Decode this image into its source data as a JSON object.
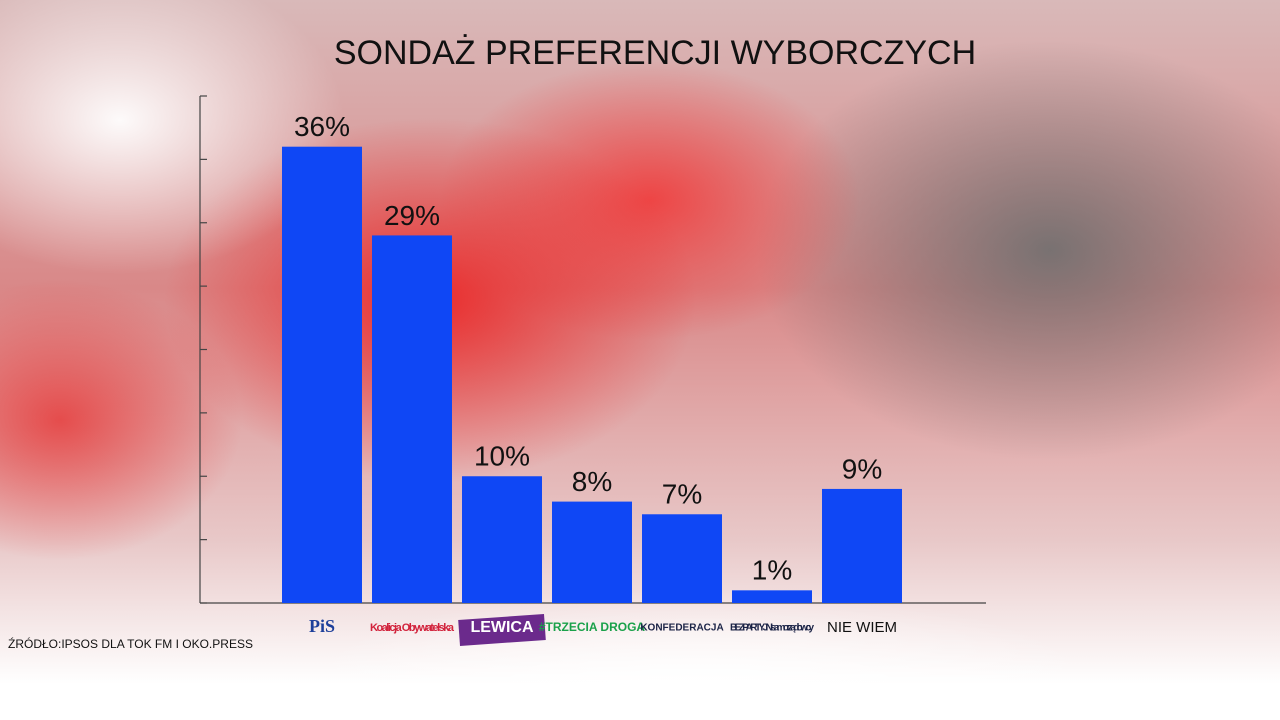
{
  "chart_data": {
    "type": "bar",
    "title": "SONDAŻ PREFERENCJI WYBORCZYCH",
    "categories": [
      "PiS",
      "Koalicja Obywatelska",
      "LEWICA",
      "#TRZECIA DROGA",
      "KONFEDERACJA",
      "BEZPARTYJNI samorządowcy",
      "NIE WIEM"
    ],
    "values": [
      36,
      29,
      10,
      8,
      7,
      1,
      9
    ],
    "value_labels": [
      "36%",
      "29%",
      "10%",
      "8%",
      "7%",
      "1%",
      "9%"
    ],
    "color": "#0f47f5",
    "ylim": [
      0,
      40
    ],
    "yticks": [
      0,
      5,
      10,
      15,
      20,
      25,
      30,
      35,
      40
    ],
    "annotation": "ŹRÓDŁO:IPSOS DLA TOK FM I OKO.PRESS"
  }
}
